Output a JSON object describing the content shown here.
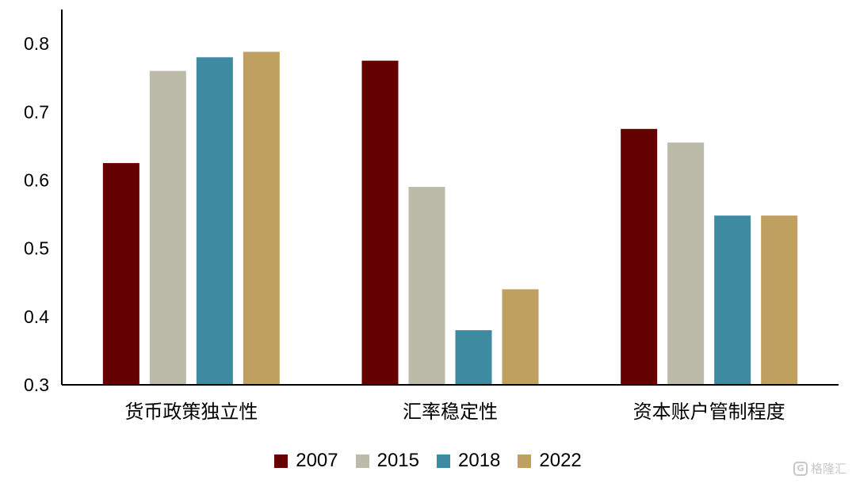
{
  "chart_data": {
    "type": "bar",
    "categories": [
      "货币政策独立性",
      "汇率稳定性",
      "资本账户管制程度"
    ],
    "series": [
      {
        "name": "2007",
        "values": [
          0.625,
          0.775,
          0.675
        ],
        "color": "#650000"
      },
      {
        "name": "2015",
        "values": [
          0.76,
          0.59,
          0.655
        ],
        "color": "#bcbaa9"
      },
      {
        "name": "2018",
        "values": [
          0.78,
          0.38,
          0.548
        ],
        "color": "#3e8aa0"
      },
      {
        "name": "2022",
        "values": [
          0.788,
          0.44,
          0.548
        ],
        "color": "#c0a060"
      }
    ],
    "yticks": [
      "0.3",
      "0.4",
      "0.5",
      "0.6",
      "0.7",
      "0.8"
    ],
    "ylim": [
      0.3,
      0.85
    ],
    "grid": false,
    "legend_position": "bottom"
  },
  "watermark": {
    "icon": "G",
    "text": "格隆汇"
  }
}
